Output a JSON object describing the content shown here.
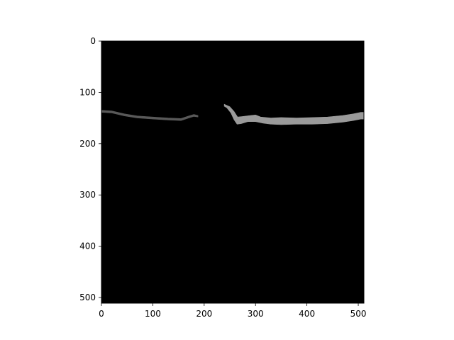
{
  "image": {
    "kind": "grayscale image displayed on matplotlib axes",
    "background_color": "#000000",
    "content": "a thin gray horizontal band across the upper part of the frame, fainter and thinner on the left, brighter and thicker on the right, with a gap in the middle"
  },
  "axes": {
    "x_range": [
      0,
      511
    ],
    "y_range": [
      511,
      0
    ],
    "y_inverted": true,
    "x_ticks": [
      {
        "value": 0,
        "label": "0"
      },
      {
        "value": 100,
        "label": "100"
      },
      {
        "value": 200,
        "label": "200"
      },
      {
        "value": 300,
        "label": "300"
      },
      {
        "value": 400,
        "label": "400"
      },
      {
        "value": 500,
        "label": "500"
      }
    ],
    "y_ticks": [
      {
        "value": 0,
        "label": "0"
      },
      {
        "value": 100,
        "label": "100"
      },
      {
        "value": 200,
        "label": "200"
      },
      {
        "value": 300,
        "label": "300"
      },
      {
        "value": 400,
        "label": "400"
      },
      {
        "value": 500,
        "label": "500"
      }
    ]
  },
  "band": {
    "left_segment": {
      "top_edge": [
        [
          0,
          135
        ],
        [
          20,
          136
        ],
        [
          45,
          142
        ],
        [
          70,
          146
        ],
        [
          100,
          148
        ],
        [
          130,
          150
        ],
        [
          155,
          151
        ],
        [
          170,
          146
        ],
        [
          180,
          143
        ],
        [
          188,
          145
        ]
      ],
      "bottom_edge": [
        [
          188,
          148
        ],
        [
          180,
          147
        ],
        [
          170,
          150
        ],
        [
          155,
          155
        ],
        [
          130,
          154
        ],
        [
          100,
          152
        ],
        [
          70,
          150
        ],
        [
          45,
          146
        ],
        [
          20,
          140
        ],
        [
          0,
          139
        ]
      ],
      "color": "#595959"
    },
    "right_segment": {
      "top_edge": [
        [
          239,
          123
        ],
        [
          250,
          128
        ],
        [
          258,
          137
        ],
        [
          265,
          148
        ],
        [
          275,
          147
        ],
        [
          290,
          145
        ],
        [
          300,
          144
        ],
        [
          310,
          148
        ],
        [
          330,
          150
        ],
        [
          350,
          149
        ],
        [
          380,
          150
        ],
        [
          410,
          149
        ],
        [
          440,
          148
        ],
        [
          470,
          145
        ],
        [
          490,
          142
        ],
        [
          505,
          139
        ],
        [
          511,
          139
        ]
      ],
      "bottom_edge": [
        [
          511,
          152
        ],
        [
          505,
          152
        ],
        [
          490,
          155
        ],
        [
          470,
          158
        ],
        [
          440,
          161
        ],
        [
          410,
          162
        ],
        [
          380,
          162
        ],
        [
          350,
          163
        ],
        [
          330,
          162
        ],
        [
          315,
          160
        ],
        [
          300,
          157
        ],
        [
          285,
          157
        ],
        [
          272,
          161
        ],
        [
          264,
          162
        ],
        [
          258,
          153
        ],
        [
          252,
          140
        ],
        [
          244,
          130
        ],
        [
          239,
          127
        ]
      ],
      "color": "#9a9a9a"
    }
  }
}
